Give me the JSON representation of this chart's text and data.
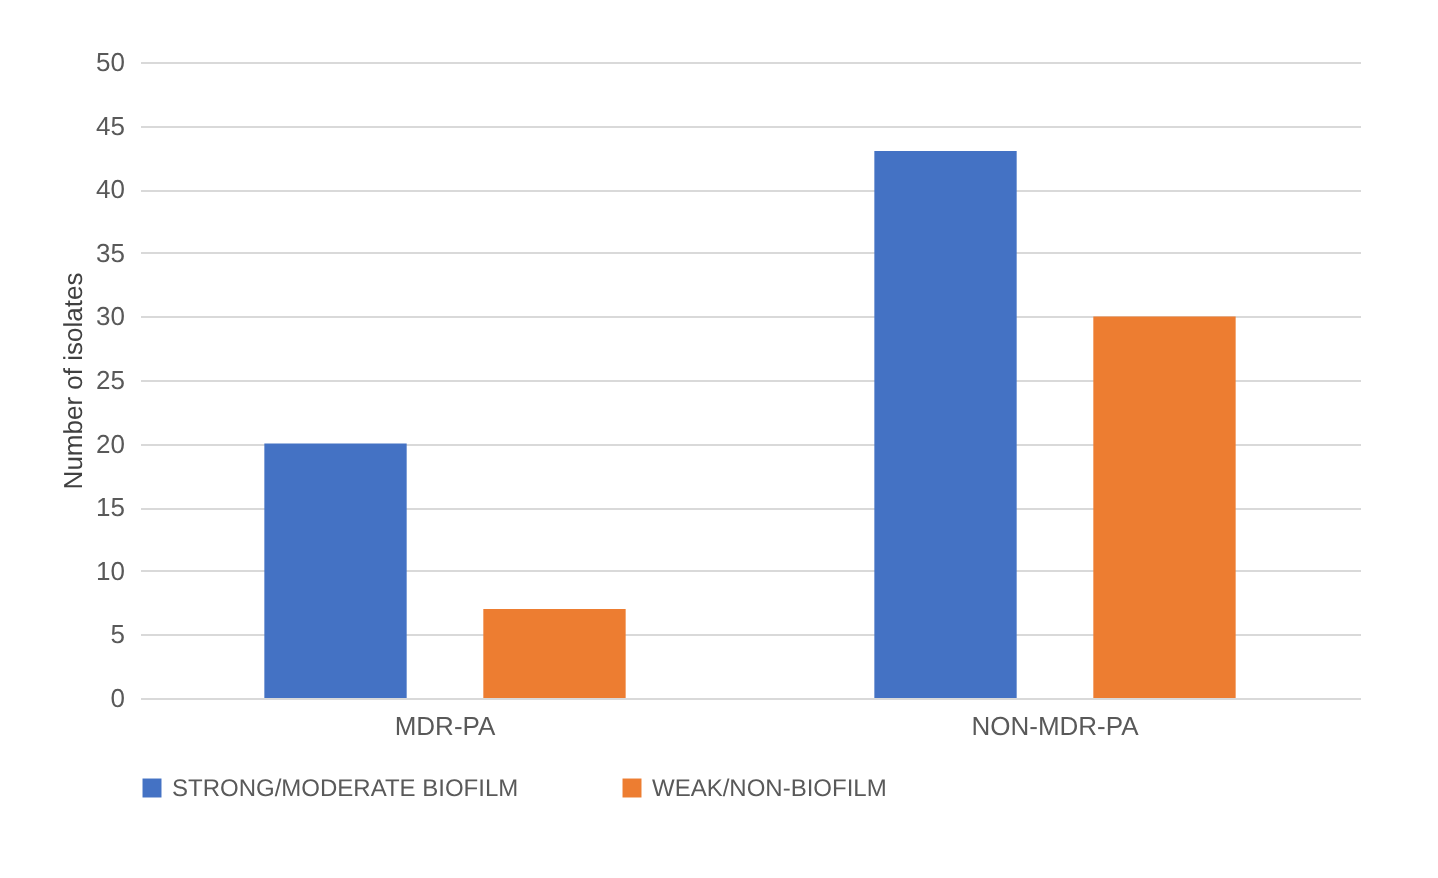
{
  "chart_data": {
    "type": "bar",
    "ylabel": "Number of isolates",
    "categories": [
      "MDR-PA",
      "NON-MDR-PA"
    ],
    "series": [
      {
        "name": "STRONG/MODERATE BIOFILM",
        "color": "#4472c4",
        "values": [
          20,
          43
        ]
      },
      {
        "name": "WEAK/NON-BIOFILM",
        "color": "#ed7d31",
        "values": [
          7,
          30
        ]
      }
    ],
    "ylim": [
      0,
      50
    ],
    "yticks": [
      0,
      5,
      10,
      15,
      20,
      25,
      30,
      35,
      40,
      45,
      50
    ],
    "grid": "y",
    "legend": "bottom"
  }
}
